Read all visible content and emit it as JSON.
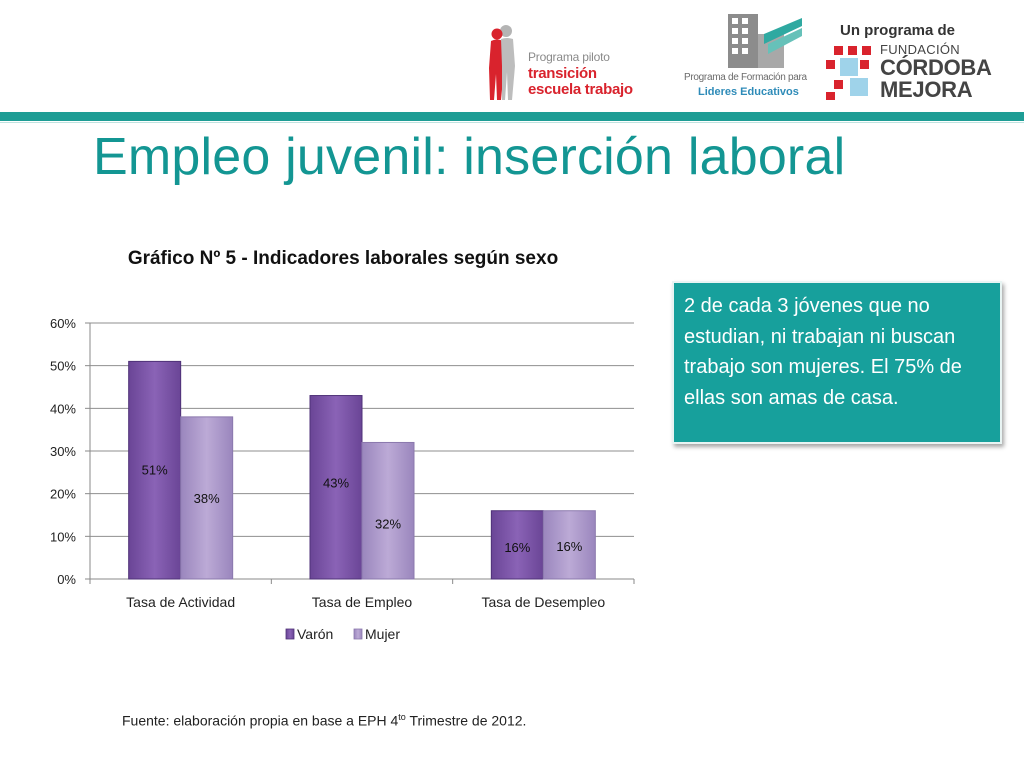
{
  "logos": {
    "logo1": {
      "line1": "Programa piloto",
      "line2": "transición",
      "line3": "escuela trabajo"
    },
    "logo2": {
      "line1": "Programa de Formación para",
      "line2": "Lideres Educativos"
    },
    "logo3": {
      "line1": "Un programa de",
      "line2": "FUNDACIÓN",
      "line3": "CÓRDOBA",
      "line4": "MEJORA"
    }
  },
  "page": {
    "title": "Empleo juvenil: inserción laboral"
  },
  "info_box": {
    "text": "2 de cada 3 jóvenes que no estudian, ni trabajan ni buscan trabajo son mujeres. El 75% de ellas son amas de casa."
  },
  "source": {
    "prefix": "Fuente: elaboración propia en base a EPH 4",
    "sup": "to",
    "suffix": " Trimestre de 2012."
  },
  "colors": {
    "accent": "#139693",
    "varon": "#7c56a8",
    "mujer": "#ab97ca",
    "info_bg": "#17a09c"
  },
  "chart_data": {
    "type": "bar",
    "title": "Gráfico Nº 5 - Indicadores laborales según sexo",
    "categories": [
      "Tasa de Actividad",
      "Tasa de Empleo",
      "Tasa de Desempleo"
    ],
    "series": [
      {
        "name": "Varón",
        "values": [
          51,
          43,
          16
        ],
        "labels": [
          "51%",
          "43%",
          "16%"
        ],
        "color": "#7c56a8"
      },
      {
        "name": "Mujer",
        "values": [
          38,
          32,
          16
        ],
        "labels": [
          "38%",
          "32%",
          "16%"
        ],
        "color": "#ab97ca"
      }
    ],
    "yticks": [
      "0%",
      "10%",
      "20%",
      "30%",
      "40%",
      "50%",
      "60%"
    ],
    "ylim": [
      0,
      60
    ],
    "grid": true,
    "legend_position": "bottom"
  }
}
